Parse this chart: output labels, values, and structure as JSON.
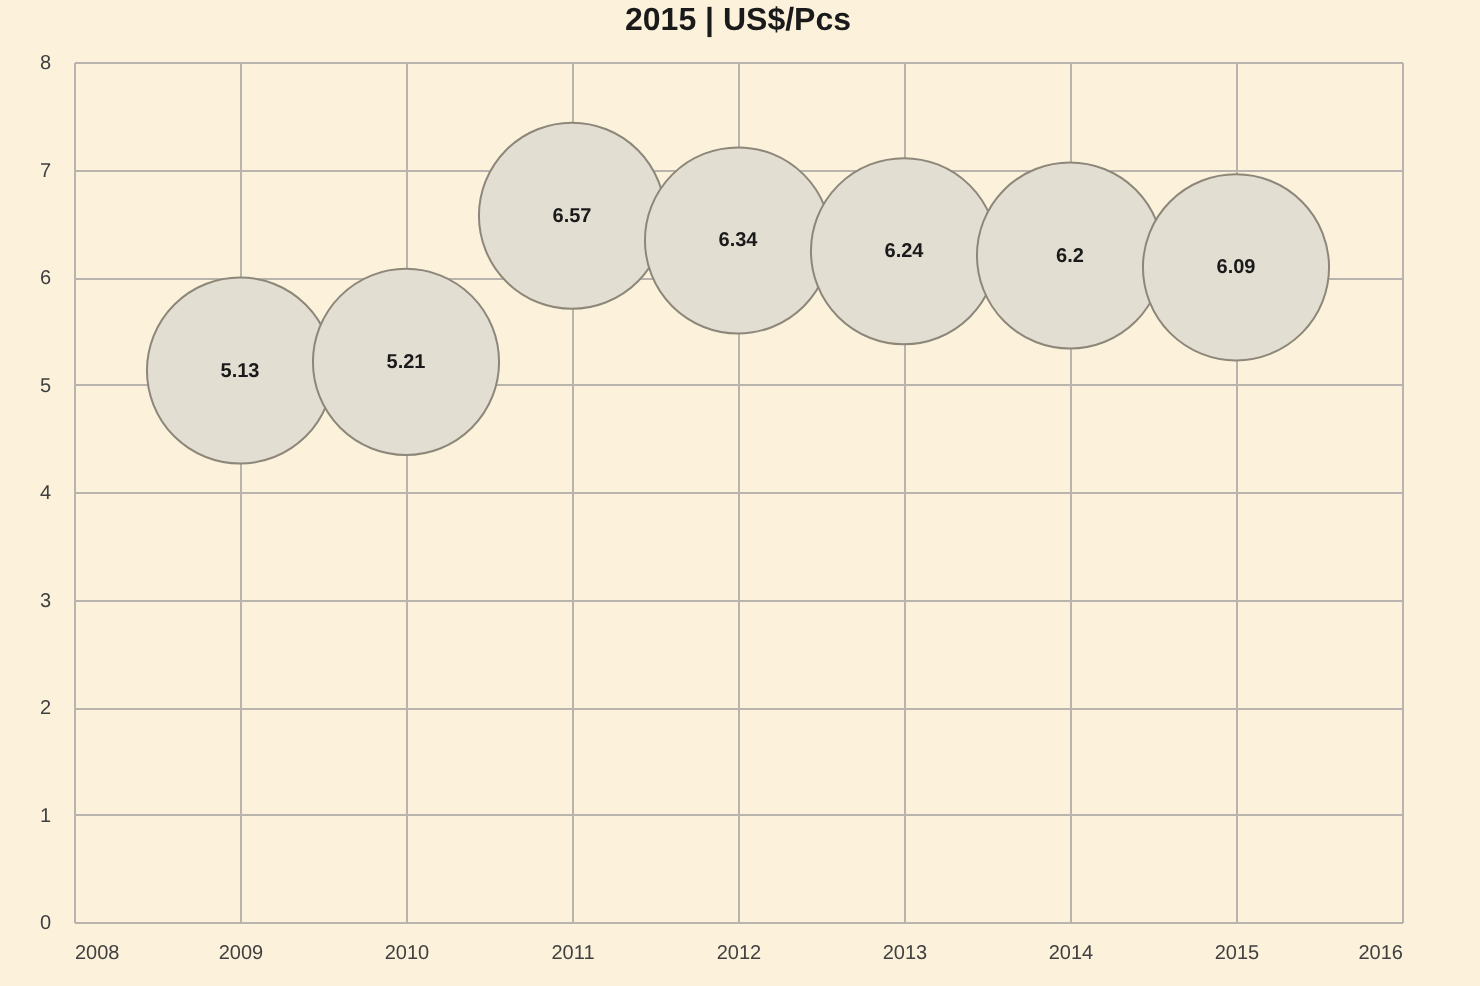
{
  "chart_data": {
    "type": "bubble",
    "title": "2015 | US$/Pcs",
    "x": [
      2009,
      2010,
      2011,
      2012,
      2013,
      2014,
      2015
    ],
    "values": [
      5.13,
      5.21,
      6.57,
      6.34,
      6.24,
      6.2,
      6.09
    ],
    "sizes": [
      1,
      1,
      1,
      1,
      1,
      1,
      1
    ],
    "color": "#e3ded2",
    "xlim": [
      2008,
      2016
    ],
    "xticks": [
      2008,
      2009,
      2010,
      2011,
      2012,
      2013,
      2014,
      2015,
      2016
    ],
    "ylim": [
      0,
      8
    ],
    "yticks": [
      0,
      1,
      2,
      3,
      4,
      5,
      6,
      7,
      8
    ],
    "grid": true,
    "data_labels": true
  }
}
